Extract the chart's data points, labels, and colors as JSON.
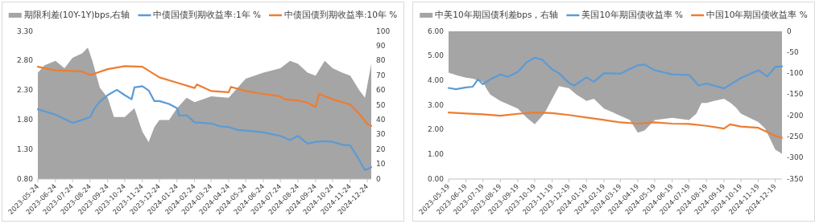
{
  "chart_data": [
    {
      "type": "line",
      "legend": "top",
      "xlim": [
        "2023-05-24",
        "2024-12-31"
      ],
      "xticks": [
        "2023-05-24",
        "2023-06-24",
        "2023-07-24",
        "2023-08-24",
        "2023-09-24",
        "2023-10-24",
        "2023-11-24",
        "2023-12-24",
        "2024-01-24",
        "2024-02-24",
        "2024-03-24",
        "2024-04-24",
        "2024-05-24",
        "2024-06-24",
        "2024-07-24",
        "2024-08-24",
        "2024-09-24",
        "2024-10-24",
        "2024-11-24",
        "2024-12-24"
      ],
      "ylim": [
        0.8,
        3.3
      ],
      "yticks": [
        {
          "value": 0.8,
          "label": "0.80"
        },
        {
          "value": 1.3,
          "label": "1.30"
        },
        {
          "value": 1.8,
          "label": "1.80"
        },
        {
          "value": 2.3,
          "label": "2.30"
        },
        {
          "value": 2.8,
          "label": "2.80"
        },
        {
          "value": 3.3,
          "label": "3.30"
        }
      ],
      "y2lim": [
        0,
        100
      ],
      "y2ticks": [
        0,
        10,
        20,
        30,
        40,
        50,
        60,
        70,
        80,
        90,
        100
      ],
      "series": [
        {
          "name": "期限利差(10Y-1Y)bps,右轴",
          "type": "area",
          "axis": "y2",
          "color": "#a5a5a5",
          "x": [
            "2023-05-24",
            "2023-06-05",
            "2023-06-24",
            "2023-07-10",
            "2023-07-24",
            "2023-08-10",
            "2023-08-20",
            "2023-08-28",
            "2023-09-10",
            "2023-09-24",
            "2023-10-05",
            "2023-10-24",
            "2023-11-10",
            "2023-11-24",
            "2023-12-05",
            "2023-12-15",
            "2023-12-24",
            "2024-01-10",
            "2024-01-24",
            "2024-02-10",
            "2024-02-24",
            "2024-03-24",
            "2024-04-24",
            "2024-05-10",
            "2024-05-24",
            "2024-06-24",
            "2024-07-24",
            "2024-08-10",
            "2024-08-24",
            "2024-09-10",
            "2024-09-24",
            "2024-10-10",
            "2024-10-24",
            "2024-11-10",
            "2024-11-24",
            "2024-12-10",
            "2024-12-20",
            "2024-12-31"
          ],
          "values": [
            72,
            77,
            80,
            75,
            82,
            85,
            89,
            80,
            62,
            55,
            42,
            42,
            48,
            32,
            25,
            35,
            40,
            40,
            48,
            55,
            52,
            56,
            55,
            62,
            68,
            72,
            75,
            80,
            78,
            72,
            70,
            80,
            75,
            72,
            70,
            60,
            55,
            78
          ]
        },
        {
          "name": "中债国债到期收益率:1年 %",
          "axis": "y",
          "color": "#5b9bd5",
          "x": [
            "2023-05-24",
            "2023-06-24",
            "2023-07-24",
            "2023-08-10",
            "2023-08-24",
            "2023-09-01",
            "2023-09-10",
            "2023-09-24",
            "2023-10-10",
            "2023-10-24",
            "2023-11-05",
            "2023-11-10",
            "2023-11-24",
            "2023-12-05",
            "2023-12-15",
            "2023-12-24",
            "2024-01-10",
            "2024-01-24",
            "2024-01-28",
            "2024-02-10",
            "2024-02-24",
            "2024-03-24",
            "2024-04-10",
            "2024-04-24",
            "2024-05-10",
            "2024-05-24",
            "2024-06-24",
            "2024-07-24",
            "2024-08-10",
            "2024-08-24",
            "2024-09-10",
            "2024-09-24",
            "2024-10-10",
            "2024-10-24",
            "2024-11-10",
            "2024-11-24",
            "2024-12-05",
            "2024-12-20",
            "2024-12-31"
          ],
          "values": [
            1.98,
            1.89,
            1.75,
            1.8,
            1.85,
            2.0,
            2.11,
            2.22,
            2.31,
            2.22,
            2.15,
            2.35,
            2.37,
            2.3,
            2.12,
            2.12,
            2.07,
            2.0,
            1.87,
            1.88,
            1.76,
            1.74,
            1.69,
            1.68,
            1.63,
            1.62,
            1.59,
            1.53,
            1.46,
            1.53,
            1.4,
            1.43,
            1.44,
            1.43,
            1.38,
            1.37,
            1.2,
            0.95,
            1.0
          ]
        },
        {
          "name": "中债国债到期收益率:10年 %",
          "axis": "y",
          "color": "#ed7d31",
          "x": [
            "2023-05-24",
            "2023-06-24",
            "2023-07-24",
            "2023-08-10",
            "2023-08-24",
            "2023-09-24",
            "2023-10-24",
            "2023-11-24",
            "2023-12-24",
            "2024-01-24",
            "2024-02-24",
            "2024-02-28",
            "2024-03-24",
            "2024-04-24",
            "2024-04-28",
            "2024-05-24",
            "2024-06-24",
            "2024-07-24",
            "2024-07-31",
            "2024-08-24",
            "2024-09-10",
            "2024-09-24",
            "2024-09-30",
            "2024-10-24",
            "2024-11-10",
            "2024-11-24",
            "2024-12-10",
            "2024-12-24",
            "2024-12-31"
          ],
          "values": [
            2.7,
            2.64,
            2.63,
            2.62,
            2.56,
            2.66,
            2.71,
            2.7,
            2.52,
            2.43,
            2.34,
            2.4,
            2.29,
            2.27,
            2.36,
            2.29,
            2.24,
            2.2,
            2.15,
            2.13,
            2.09,
            2.02,
            2.24,
            2.15,
            2.1,
            2.06,
            1.9,
            1.73,
            1.7
          ]
        }
      ]
    },
    {
      "type": "line",
      "legend": "top",
      "xlim": [
        "2023-05-19",
        "2024-12-31"
      ],
      "xticks": [
        "2023-05-19",
        "2023-06-19",
        "2023-07-19",
        "2023-08-19",
        "2023-09-19",
        "2023-10-19",
        "2023-11-19",
        "2023-12-19",
        "2024-01-19",
        "2024-02-19",
        "2024-03-19",
        "2024-04-19",
        "2024-05-19",
        "2024-06-19",
        "2024-07-19",
        "2024-08-19",
        "2024-09-19",
        "2024-10-19",
        "2024-11-19",
        "2024-12-19"
      ],
      "ylim": [
        0,
        6
      ],
      "yticks": [
        {
          "value": 0,
          "label": "0.00"
        },
        {
          "value": 1,
          "label": "1.00"
        },
        {
          "value": 2,
          "label": "2.00"
        },
        {
          "value": 3,
          "label": "3.00"
        },
        {
          "value": 4,
          "label": "4.00"
        },
        {
          "value": 5,
          "label": "5.00"
        },
        {
          "value": 6,
          "label": "6.00"
        }
      ],
      "y2lim": [
        -350,
        0
      ],
      "y2ticks": [
        -350,
        -300,
        -250,
        -200,
        -150,
        -100,
        -50,
        0
      ],
      "series": [
        {
          "name": "中美10年期国债利差bps，右轴",
          "type": "area",
          "axis": "y2",
          "color": "#a5a5a5",
          "x": [
            "2023-05-19",
            "2023-06-05",
            "2023-06-19",
            "2023-07-01",
            "2023-07-19",
            "2023-07-25",
            "2023-08-01",
            "2023-08-19",
            "2023-09-19",
            "2023-10-05",
            "2023-10-19",
            "2023-11-05",
            "2023-11-19",
            "2023-12-01",
            "2023-12-19",
            "2024-01-01",
            "2024-01-19",
            "2024-02-01",
            "2024-02-19",
            "2024-03-19",
            "2024-04-05",
            "2024-04-19",
            "2024-05-01",
            "2024-05-19",
            "2024-06-19",
            "2024-07-19",
            "2024-08-01",
            "2024-08-10",
            "2024-08-19",
            "2024-09-01",
            "2024-09-19",
            "2024-10-01",
            "2024-10-10",
            "2024-10-19",
            "2024-11-19",
            "2024-12-01",
            "2024-12-19",
            "2024-12-31"
          ],
          "values": [
            -98,
            -105,
            -110,
            -112,
            -120,
            -135,
            -150,
            -165,
            -183,
            -205,
            -220,
            -195,
            -160,
            -130,
            -135,
            -150,
            -165,
            -160,
            -183,
            -200,
            -210,
            -240,
            -235,
            -210,
            -205,
            -210,
            -195,
            -170,
            -170,
            -165,
            -160,
            -170,
            -180,
            -195,
            -215,
            -230,
            -280,
            -290
          ]
        },
        {
          "name": "美国10年期国债收益率 %",
          "axis": "y",
          "color": "#5b9bd5",
          "x": [
            "2023-05-19",
            "2023-06-01",
            "2023-06-19",
            "2023-07-01",
            "2023-07-10",
            "2023-07-19",
            "2023-08-01",
            "2023-08-19",
            "2023-09-01",
            "2023-09-19",
            "2023-10-05",
            "2023-10-19",
            "2023-11-01",
            "2023-11-19",
            "2023-12-01",
            "2023-12-19",
            "2023-12-28",
            "2024-01-19",
            "2024-02-01",
            "2024-02-19",
            "2024-03-19",
            "2024-04-19",
            "2024-05-01",
            "2024-05-19",
            "2024-06-19",
            "2024-07-19",
            "2024-08-05",
            "2024-08-19",
            "2024-09-19",
            "2024-10-19",
            "2024-11-19",
            "2024-12-05",
            "2024-12-19",
            "2024-12-31"
          ],
          "values": [
            3.7,
            3.65,
            3.72,
            3.75,
            4.05,
            3.85,
            4.05,
            4.25,
            4.15,
            4.35,
            4.75,
            4.93,
            4.85,
            4.45,
            4.3,
            3.9,
            3.8,
            4.13,
            3.95,
            4.3,
            4.28,
            4.62,
            4.65,
            4.42,
            4.25,
            4.23,
            3.8,
            3.88,
            3.68,
            4.1,
            4.42,
            4.17,
            4.55,
            4.58
          ]
        },
        {
          "name": "中国10年期国债收益率 %",
          "axis": "y",
          "color": "#ed7d31",
          "x": [
            "2023-05-19",
            "2023-06-19",
            "2023-07-19",
            "2023-08-19",
            "2023-09-19",
            "2023-10-19",
            "2023-11-19",
            "2023-12-19",
            "2024-01-19",
            "2024-02-19",
            "2024-03-19",
            "2024-04-19",
            "2024-05-19",
            "2024-06-19",
            "2024-07-19",
            "2024-08-19",
            "2024-09-19",
            "2024-09-30",
            "2024-10-19",
            "2024-11-19",
            "2024-12-19",
            "2024-12-31"
          ],
          "values": [
            2.7,
            2.66,
            2.63,
            2.57,
            2.65,
            2.7,
            2.68,
            2.6,
            2.5,
            2.4,
            2.3,
            2.25,
            2.3,
            2.25,
            2.24,
            2.16,
            2.05,
            2.22,
            2.13,
            2.08,
            1.75,
            1.68
          ]
        }
      ]
    }
  ]
}
